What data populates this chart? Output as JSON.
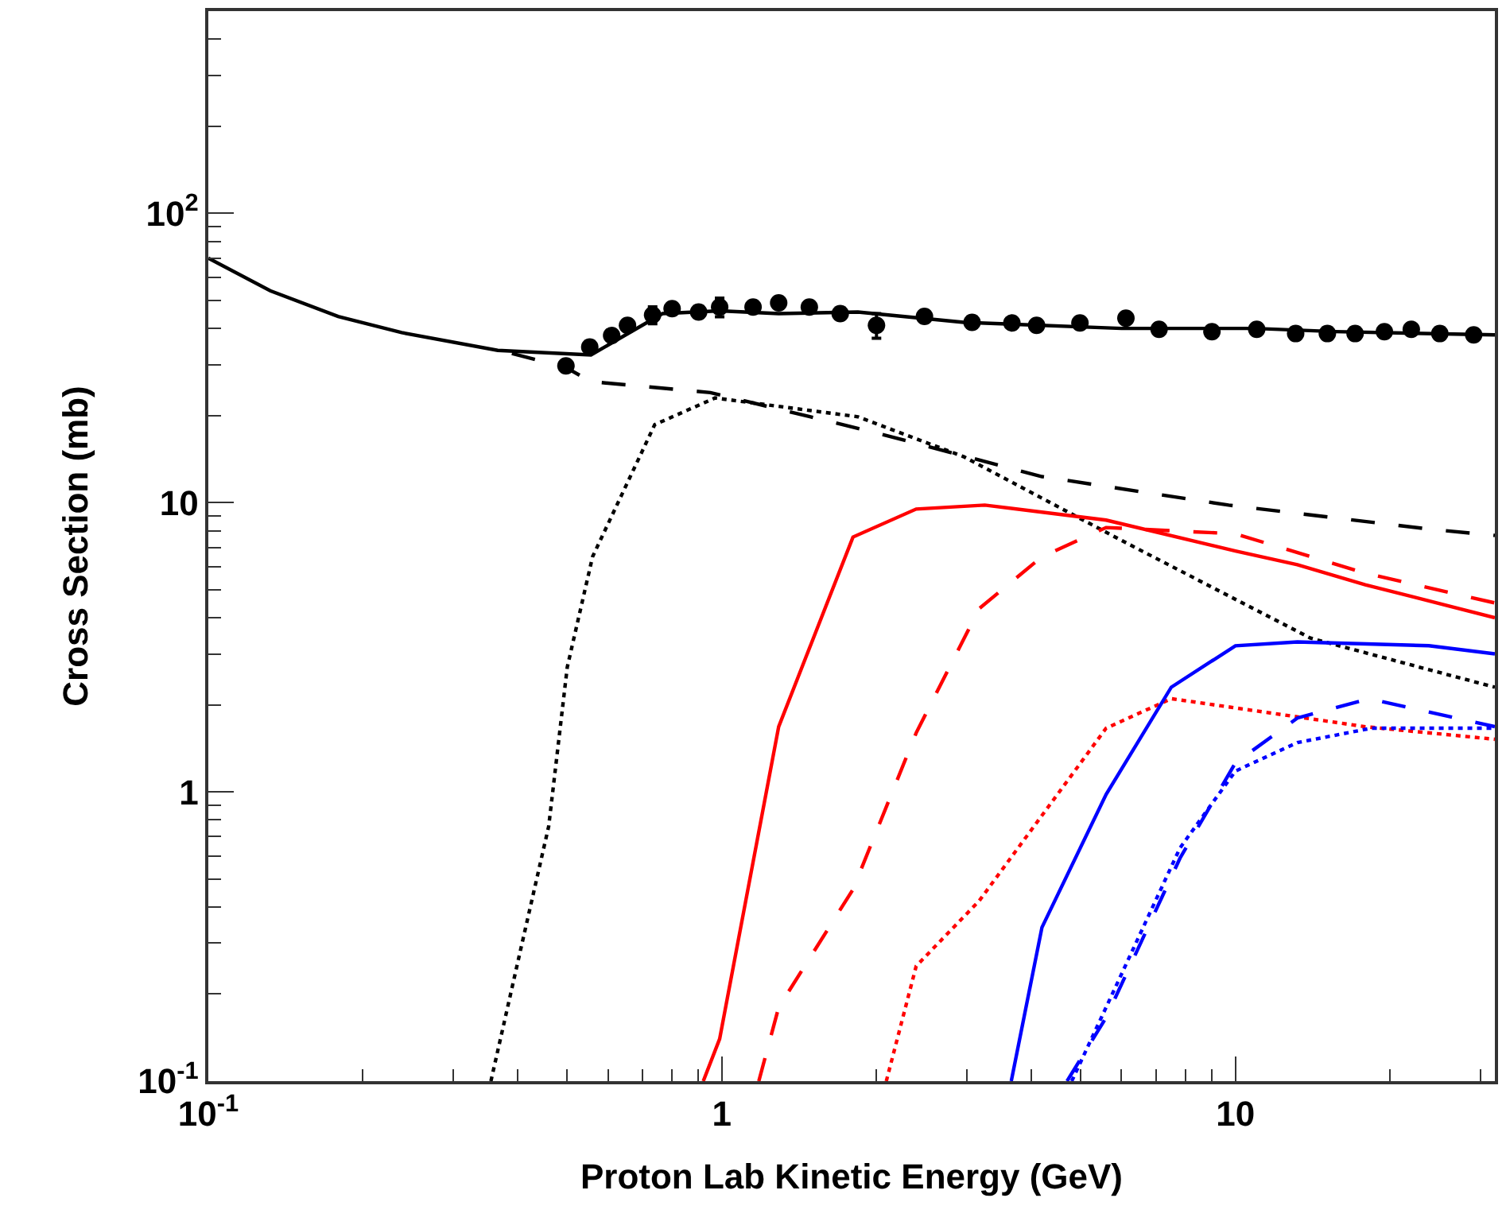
{
  "chart_data": {
    "type": "line",
    "xlabel": "Proton Lab Kinetic Energy (GeV)",
    "ylabel": "Cross Section (mb)",
    "log": "xy",
    "xlim": [
      0.1,
      32
    ],
    "ylim": [
      0.1,
      500
    ],
    "xticks": [
      {
        "value": 0.1,
        "label": "10$^{-1}$"
      },
      1,
      10
    ],
    "yticks": [
      {
        "value": 0.1,
        "label": "10$^{-1}$"
      },
      1,
      10,
      {
        "value": 100,
        "label": "10$^{2}$"
      }
    ],
    "series": [
      {
        "color": "#000000",
        "line_style": "solid",
        "marker": "none",
        "x": [
          0.1,
          0.132,
          0.179,
          0.238,
          0.366,
          0.556,
          0.766,
          0.99,
          1.29,
          1.84,
          2.96,
          6.0,
          10.9,
          15.6,
          32
        ],
        "values": [
          70,
          54,
          44,
          38.7,
          33.6,
          32.4,
          45,
          46,
          45,
          45.6,
          42,
          40,
          40,
          39,
          38
        ]
      },
      {
        "color": "#000000",
        "line_style": "dashed",
        "marker": "none",
        "x": [
          0.39,
          0.497,
          0.556,
          0.95,
          1.98,
          4.2,
          9.7,
          23.8,
          32
        ],
        "values": [
          32.8,
          29.3,
          26.2,
          24,
          17.5,
          12.3,
          9.8,
          8.1,
          7.7
        ]
      },
      {
        "color": "#000000",
        "line_style": "dotted",
        "marker": "none",
        "x": [
          0.355,
          0.41,
          0.46,
          0.5,
          0.56,
          0.74,
          0.97,
          1.84,
          2.96,
          6.0,
          14,
          32
        ],
        "values": [
          0.1,
          0.31,
          0.76,
          2.7,
          6.5,
          18.6,
          23,
          19.8,
          14.4,
          7.4,
          3.4,
          2.3
        ]
      },
      {
        "color": "#ff0000",
        "line_style": "solid",
        "marker": "none",
        "x": [
          0.92,
          0.99,
          1.29,
          1.8,
          2.39,
          3.25,
          5.6,
          10,
          13.2,
          17.9,
          32
        ],
        "values": [
          0.1,
          0.14,
          1.68,
          7.6,
          9.5,
          9.8,
          8.7,
          6.8,
          6.1,
          5.2,
          4.0
        ]
      },
      {
        "color": "#ff0000",
        "line_style": "dashed",
        "marker": "none",
        "x": [
          1.18,
          1.29,
          1.8,
          2.39,
          3.17,
          4.2,
          5.6,
          10,
          17.9,
          32
        ],
        "values": [
          0.1,
          0.18,
          0.46,
          1.6,
          4.3,
          6.5,
          8.2,
          7.8,
          5.7,
          4.5
        ]
      },
      {
        "color": "#ff0000",
        "line_style": "dotted",
        "marker": "none",
        "x": [
          2.09,
          2.39,
          3.17,
          5.6,
          7.5,
          17.9,
          32
        ],
        "values": [
          0.1,
          0.25,
          0.42,
          1.66,
          2.1,
          1.68,
          1.52
        ]
      },
      {
        "color": "#0000ff",
        "line_style": "solid",
        "marker": "none",
        "x": [
          3.66,
          4.2,
          5.6,
          7.5,
          10,
          13.2,
          23.8,
          32
        ],
        "values": [
          0.1,
          0.34,
          0.98,
          2.3,
          3.2,
          3.3,
          3.2,
          3.0
        ]
      },
      {
        "color": "#0000ff",
        "line_style": "dashed",
        "marker": "none",
        "x": [
          4.7,
          5.6,
          7.8,
          10,
          13.2,
          18.2,
          32
        ],
        "values": [
          0.1,
          0.166,
          0.59,
          1.26,
          1.8,
          2.1,
          1.68
        ]
      },
      {
        "color": "#0000ff",
        "line_style": "dotted",
        "marker": "none",
        "x": [
          4.8,
          5.6,
          7.8,
          10,
          13.2,
          18.4,
          32
        ],
        "values": [
          0.1,
          0.18,
          0.64,
          1.18,
          1.48,
          1.66,
          1.66
        ]
      },
      {
        "type": "scatter",
        "color": "#000000",
        "marker": "circle",
        "x": [
          0.497,
          0.553,
          0.61,
          0.655,
          0.733,
          0.8,
          0.901,
          0.99,
          1.15,
          1.29,
          1.48,
          1.7,
          2.0,
          2.48,
          3.07,
          3.67,
          4.1,
          4.98,
          6.12,
          7.1,
          9.0,
          11.0,
          13.1,
          15.1,
          17.1,
          19.5,
          22.0,
          25.0,
          29.1
        ],
        "values": [
          29.7,
          34.5,
          37.8,
          41,
          44.5,
          46.8,
          45.6,
          47.4,
          47.4,
          49,
          47.4,
          45,
          41,
          44,
          42,
          41.8,
          41,
          41.8,
          43.4,
          39.7,
          39,
          39.7,
          38.4,
          38.4,
          38.4,
          39,
          39.7,
          38.4,
          38
        ],
        "errors": [
          null,
          null,
          null,
          null,
          3,
          null,
          null,
          3.5,
          null,
          null,
          null,
          null,
          4,
          null,
          null,
          null,
          null,
          null,
          null,
          null,
          null,
          null,
          null,
          null,
          null,
          null,
          null,
          null,
          null
        ]
      }
    ]
  }
}
